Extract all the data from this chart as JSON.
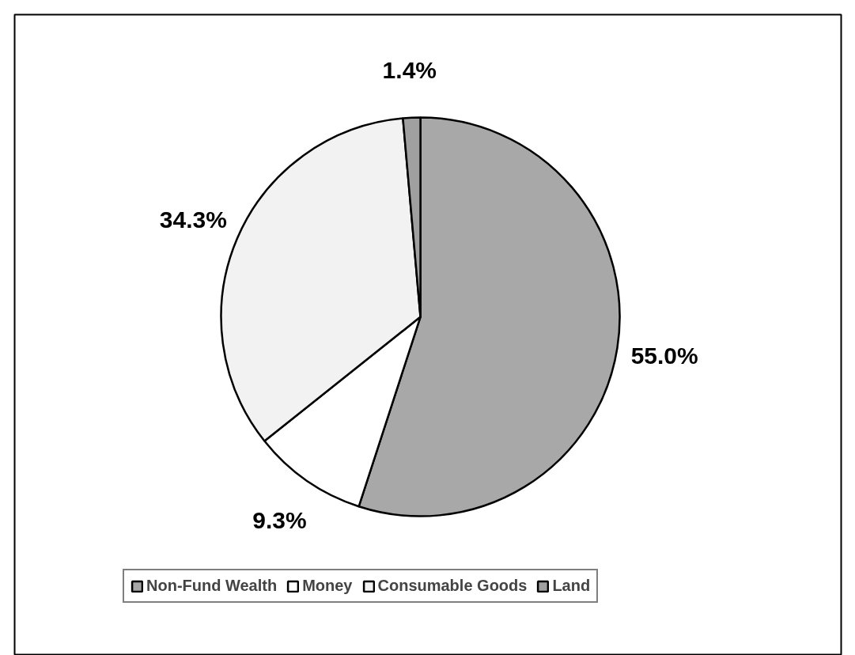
{
  "chart_data": {
    "type": "pie",
    "categories": [
      "Non-Fund Wealth",
      "Money",
      "Consumable Goods",
      "Land"
    ],
    "values": [
      55.0,
      9.3,
      34.3,
      1.4
    ],
    "value_labels": [
      "55.0%",
      "9.3%",
      "34.3%",
      "1.4%"
    ],
    "colors": [
      "#a8a8a8",
      "#ffffff",
      "#f2f2f2",
      "#a0a0a0"
    ],
    "legend": "bottom"
  }
}
